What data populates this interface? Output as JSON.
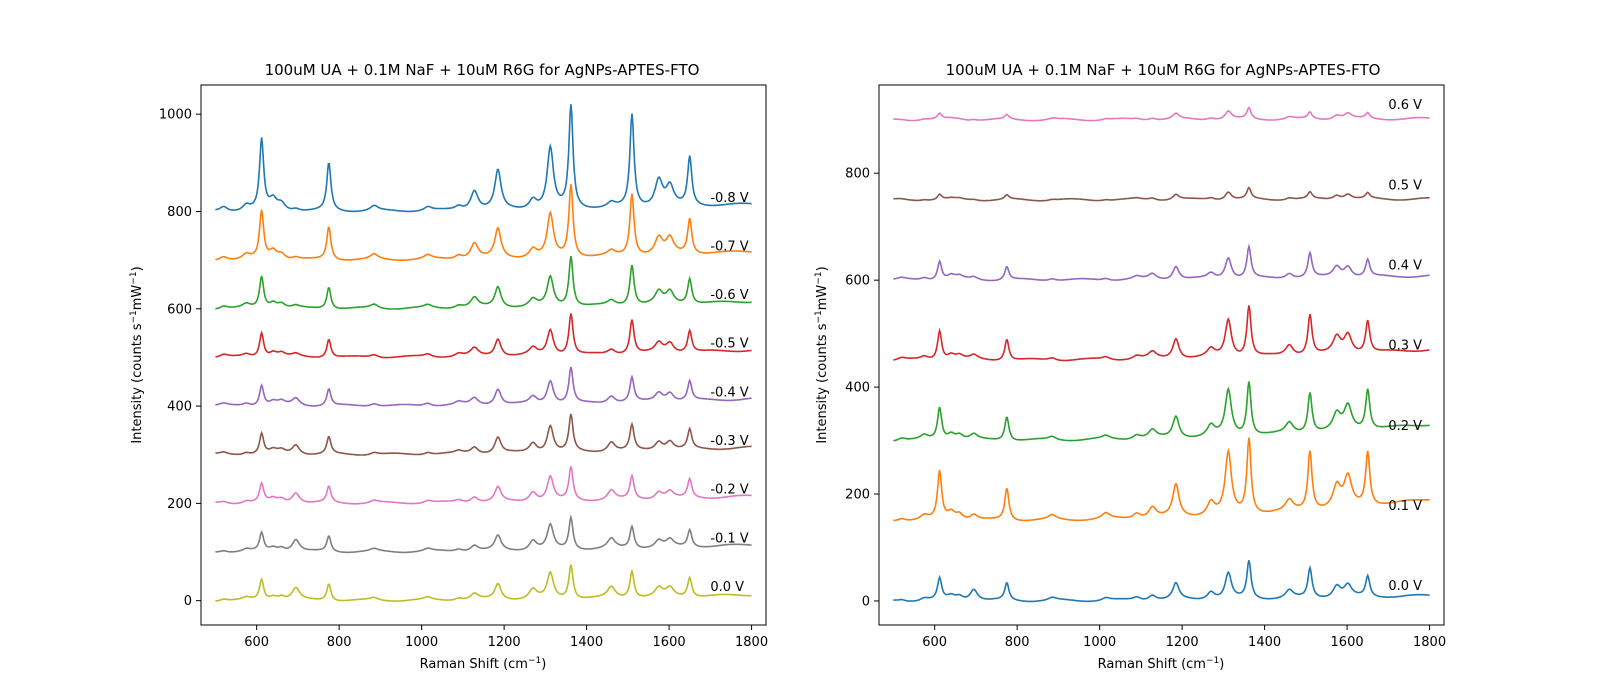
{
  "figure_size": {
    "width": 1600,
    "height": 700
  },
  "chart_data": [
    {
      "type": "line",
      "title": "100uM UA + 0.1M NaF + 10uM R6G for AgNPs-APTES-FTO",
      "xlabel": "Raman Shift (cm$^{-1}$)",
      "xlabel_display": {
        "text": "Raman Shift (cm",
        "sup": "−1",
        "after": ")"
      },
      "ylabel": "Intensity (counts s$^{-1}$mW$^{-1}$)",
      "ylabel_display": {
        "text": "Intensity (counts s",
        "sup1": "−1",
        "mid": "mW",
        "sup2": "−1",
        "after": ")"
      },
      "xlim": [
        465,
        1835
      ],
      "ylim": [
        -50,
        1060
      ],
      "xticks": [
        600,
        800,
        1000,
        1200,
        1400,
        1600,
        1800
      ],
      "yticks": [
        0,
        200,
        400,
        600,
        800,
        1000
      ],
      "grid": false,
      "legend": "none",
      "x_range": [
        500,
        1800
      ],
      "offset_step": 100,
      "peak_positions": [
        520,
        575,
        612,
        640,
        660,
        695,
        775,
        885,
        1015,
        1090,
        1128,
        1185,
        1270,
        1312,
        1362,
        1460,
        1510,
        1575,
        1602,
        1650
      ],
      "series": [
        {
          "label": "-0.8 V",
          "color": "#1f77b4",
          "offset": 800,
          "peak_heights": [
            10,
            12,
            145,
            22,
            15,
            5,
            98,
            10,
            8,
            8,
            40,
            80,
            20,
            125,
            210,
            10,
            190,
            55,
            40,
            100
          ],
          "baseline_rise": 15
        },
        {
          "label": "-0.7 V",
          "color": "#ff7f0e",
          "offset": 700,
          "peak_heights": [
            8,
            10,
            98,
            18,
            12,
            5,
            68,
            10,
            8,
            8,
            32,
            60,
            18,
            88,
            148,
            10,
            127,
            34,
            32,
            72
          ],
          "baseline_rise": 18
        },
        {
          "label": "-0.6 V",
          "color": "#2ca02c",
          "offset": 600,
          "peak_heights": [
            6,
            8,
            65,
            12,
            10,
            5,
            45,
            8,
            6,
            6,
            20,
            42,
            15,
            60,
            103,
            10,
            83,
            25,
            25,
            52
          ],
          "baseline_rise": 15
        },
        {
          "label": "-0.5 V",
          "color": "#d62728",
          "offset": 500,
          "peak_heights": [
            5,
            6,
            50,
            10,
            8,
            6,
            38,
            6,
            6,
            6,
            16,
            36,
            15,
            52,
            85,
            10,
            70,
            20,
            20,
            45
          ],
          "baseline_rise": 15
        },
        {
          "label": "-0.4 V",
          "color": "#9467bd",
          "offset": 400,
          "peak_heights": [
            4,
            6,
            42,
            8,
            8,
            15,
            35,
            6,
            6,
            6,
            14,
            33,
            15,
            48,
            73,
            15,
            50,
            18,
            18,
            40
          ],
          "baseline_rise": 15
        },
        {
          "label": "-0.3 V",
          "color": "#8c564b",
          "offset": 300,
          "peak_heights": [
            4,
            5,
            42,
            8,
            8,
            20,
            35,
            5,
            5,
            5,
            14,
            33,
            20,
            55,
            75,
            20,
            52,
            18,
            18,
            40
          ],
          "baseline_rise": 15
        },
        {
          "label": "-0.2 V",
          "color": "#e377c2",
          "offset": 200,
          "peak_heights": [
            4,
            5,
            38,
            8,
            8,
            22,
            33,
            5,
            5,
            5,
            12,
            30,
            20,
            50,
            68,
            20,
            47,
            15,
            15,
            38
          ],
          "baseline_rise": 15
        },
        {
          "label": "-0.1 V",
          "color": "#7f7f7f",
          "offset": 100,
          "peak_heights": [
            4,
            5,
            37,
            8,
            8,
            25,
            32,
            5,
            5,
            5,
            12,
            30,
            20,
            50,
            65,
            20,
            45,
            15,
            15,
            35
          ],
          "baseline_rise": 15
        },
        {
          "label": "0.0 V",
          "color": "#bcbd22",
          "offset": 0,
          "peak_heights": [
            4,
            5,
            42,
            8,
            8,
            25,
            35,
            5,
            5,
            5,
            12,
            32,
            20,
            52,
            70,
            22,
            55,
            18,
            18,
            40
          ],
          "baseline_rise": 12
        }
      ]
    },
    {
      "type": "line",
      "title": "100uM UA + 0.1M NaF + 10uM R6G for AgNPs-APTES-FTO",
      "xlabel": "Raman Shift (cm$^{-1}$)",
      "xlabel_display": {
        "text": "Raman Shift (cm",
        "sup": "−1",
        "after": ")"
      },
      "ylabel": "Intensity (counts s$^{-1}$mW$^{-1}$)",
      "ylabel_display": {
        "text": "Intensity (counts s",
        "sup1": "−1",
        "mid": "mW",
        "sup2": "−1",
        "after": ")"
      },
      "xlim": [
        465,
        1835
      ],
      "ylim": [
        -45,
        965
      ],
      "xticks": [
        600,
        800,
        1000,
        1200,
        1400,
        1600,
        1800
      ],
      "yticks": [
        0,
        200,
        400,
        600,
        800
      ],
      "grid": false,
      "legend": "none",
      "x_range": [
        500,
        1800
      ],
      "offset_step": 150,
      "peak_positions": [
        520,
        575,
        612,
        640,
        660,
        695,
        775,
        885,
        1015,
        1090,
        1128,
        1185,
        1270,
        1312,
        1362,
        1460,
        1510,
        1575,
        1602,
        1650
      ],
      "series": [
        {
          "label": "0.0 V",
          "color": "#1f77b4",
          "offset": 0,
          "peak_heights": [
            3,
            5,
            40,
            8,
            8,
            22,
            32,
            5,
            5,
            6,
            10,
            30,
            15,
            48,
            70,
            15,
            55,
            22,
            22,
            38
          ],
          "baseline_rise": 10
        },
        {
          "label": "0.1 V",
          "color": "#ff7f0e",
          "offset": 150,
          "peak_heights": [
            5,
            8,
            90,
            15,
            12,
            10,
            60,
            8,
            10,
            10,
            20,
            60,
            25,
            115,
            140,
            20,
            110,
            40,
            55,
            100
          ],
          "baseline_rise": 40
        },
        {
          "label": "0.2 V",
          "color": "#2ca02c",
          "offset": 300,
          "peak_heights": [
            5,
            8,
            60,
            12,
            10,
            10,
            45,
            6,
            6,
            8,
            15,
            40,
            20,
            85,
            100,
            20,
            75,
            30,
            45,
            75
          ],
          "baseline_rise": 30
        },
        {
          "label": "0.3 V",
          "color": "#d62728",
          "offset": 450,
          "peak_heights": [
            4,
            6,
            55,
            10,
            8,
            8,
            40,
            5,
            5,
            6,
            12,
            38,
            15,
            70,
            95,
            20,
            75,
            30,
            35,
            60
          ],
          "baseline_rise": 20
        },
        {
          "label": "0.4 V",
          "color": "#9467bd",
          "offset": 600,
          "peak_heights": [
            3,
            5,
            35,
            8,
            6,
            5,
            25,
            4,
            4,
            5,
            10,
            25,
            10,
            40,
            58,
            10,
            45,
            20,
            20,
            32
          ],
          "baseline_rise": 8
        },
        {
          "label": "0.5 V",
          "color": "#8c564b",
          "offset": 750,
          "peak_heights": [
            1,
            2,
            10,
            2,
            2,
            2,
            8,
            2,
            2,
            2,
            4,
            10,
            4,
            15,
            20,
            4,
            12,
            8,
            10,
            10
          ],
          "baseline_rise": 2
        },
        {
          "label": "0.6 V",
          "color": "#e377c2",
          "offset": 900,
          "peak_heights": [
            1,
            2,
            10,
            2,
            2,
            2,
            8,
            2,
            2,
            2,
            4,
            10,
            4,
            15,
            20,
            4,
            12,
            8,
            10,
            10
          ],
          "baseline_rise": 2
        }
      ]
    }
  ]
}
